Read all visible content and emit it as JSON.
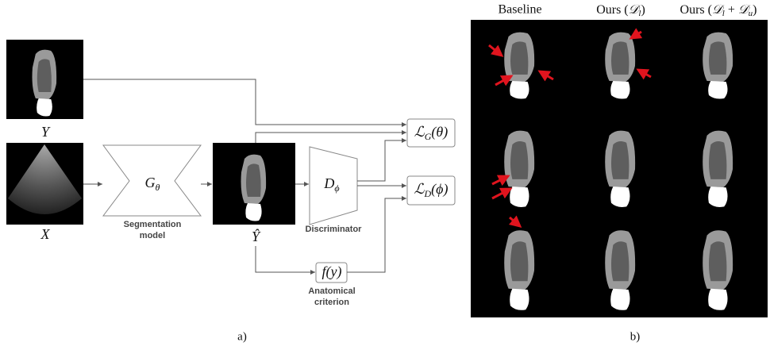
{
  "diagram": {
    "label_y": "Y",
    "input_x": "X",
    "generator": {
      "symbol": "G",
      "sub": "θ",
      "caption": [
        "Segmentation",
        "model"
      ]
    },
    "prediction": "Ŷ",
    "discriminator": {
      "symbol": "D",
      "sub": "ϕ",
      "caption": "Discriminator"
    },
    "loss_g": {
      "symbol": "ℒ",
      "sub": "G",
      "arg": "(θ)"
    },
    "loss_d": {
      "symbol": "ℒ",
      "sub": "D",
      "arg": "(ϕ)"
    },
    "criterion": {
      "expr": "f(y)",
      "caption": [
        "Anatomical",
        "criterion"
      ]
    },
    "panel_a": "a)"
  },
  "results": {
    "columns": [
      {
        "text": "Baseline"
      },
      {
        "text": "Ours (",
        "symbol": "𝒟",
        "sub": "l",
        "end": ")"
      },
      {
        "text": "Ours (",
        "symbol": "𝒟",
        "sub": "l",
        "mid": " + ",
        "symbol2": "𝒟",
        "sub2": "u",
        "end": ")"
      }
    ],
    "panel_b": "b)"
  }
}
